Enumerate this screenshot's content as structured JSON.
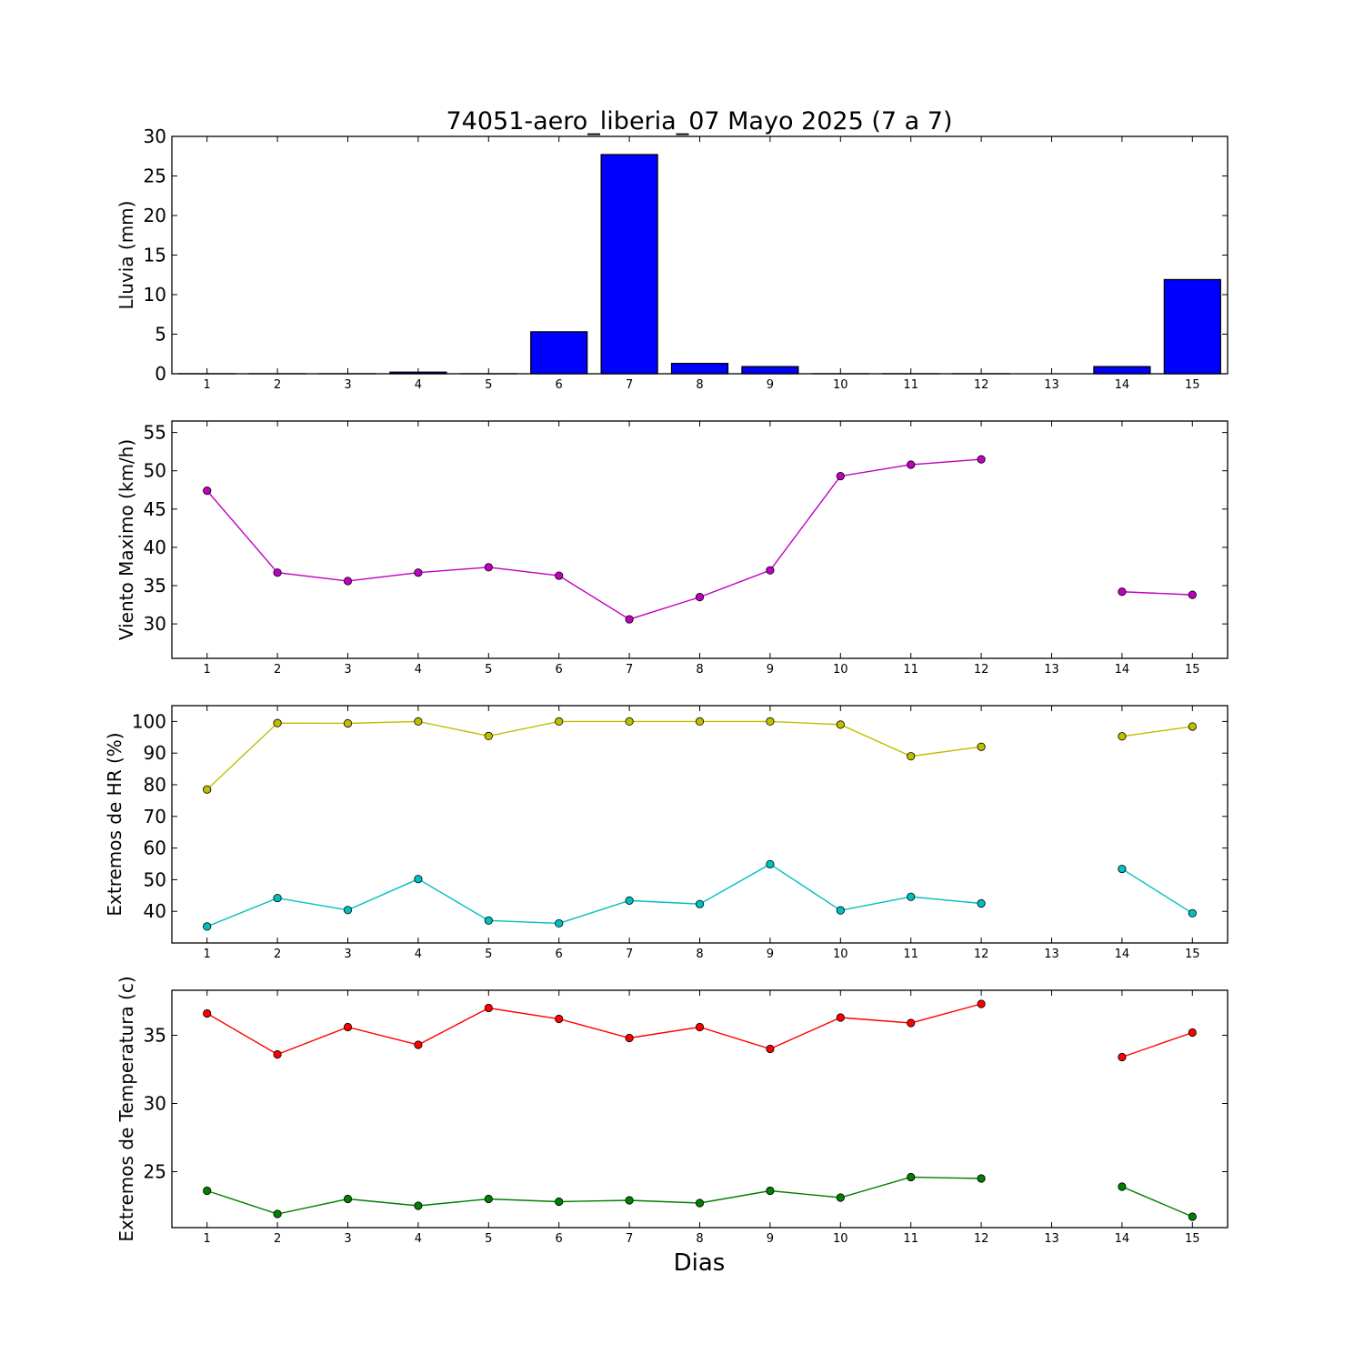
{
  "figure": {
    "title": "74051-aero_liberia_07 Mayo 2025  (7 a 7)",
    "xlabel": "Dias"
  },
  "chart_data": [
    {
      "type": "bar",
      "ylabel": "Lluvia (mm)",
      "ylim": [
        0,
        30
      ],
      "yticks": [
        0,
        5,
        10,
        15,
        20,
        25,
        30
      ],
      "xlim": [
        0.5,
        15.5
      ],
      "xticks": [
        1,
        2,
        3,
        4,
        5,
        6,
        7,
        8,
        9,
        10,
        11,
        12,
        13,
        14,
        15
      ],
      "categories": [
        1,
        2,
        3,
        4,
        5,
        6,
        7,
        8,
        9,
        10,
        11,
        12,
        13,
        14,
        15
      ],
      "values": [
        0,
        0,
        0,
        0.2,
        0,
        5.3,
        27.7,
        1.3,
        0.9,
        0,
        0,
        0,
        null,
        0.9,
        11.9
      ],
      "color": "#0000ff",
      "grid": false
    },
    {
      "type": "line",
      "ylabel": "Viento Maximo (km/h)",
      "ylim": [
        25.5,
        56.5
      ],
      "yticks": [
        30,
        35,
        40,
        45,
        50,
        55
      ],
      "xlim": [
        0.5,
        15.5
      ],
      "xticks": [
        1,
        2,
        3,
        4,
        5,
        6,
        7,
        8,
        9,
        10,
        11,
        12,
        13,
        14,
        15
      ],
      "grid": false,
      "series": [
        {
          "color": "#bf00bf",
          "x": [
            1,
            2,
            3,
            4,
            5,
            6,
            7,
            8,
            9,
            10,
            11,
            12,
            13,
            14,
            15
          ],
          "values": [
            47.4,
            36.7,
            35.6,
            36.7,
            37.4,
            36.3,
            30.6,
            33.5,
            37.0,
            49.3,
            50.8,
            51.5,
            null,
            34.2,
            33.8
          ]
        }
      ]
    },
    {
      "type": "line",
      "ylabel": "Extremos de HR (%)",
      "ylim": [
        30,
        105
      ],
      "yticks": [
        40,
        50,
        60,
        70,
        80,
        90,
        100
      ],
      "xlim": [
        0.5,
        15.5
      ],
      "xticks": [
        1,
        2,
        3,
        4,
        5,
        6,
        7,
        8,
        9,
        10,
        11,
        12,
        13,
        14,
        15
      ],
      "grid": false,
      "series": [
        {
          "color": "#bfbf00",
          "x": [
            1,
            2,
            3,
            4,
            5,
            6,
            7,
            8,
            9,
            10,
            11,
            12,
            13,
            14,
            15
          ],
          "values": [
            78.5,
            99.5,
            99.4,
            100,
            95.4,
            100,
            100,
            100,
            100,
            99,
            89,
            92,
            null,
            95.3,
            98.4
          ]
        },
        {
          "color": "#00bfbf",
          "x": [
            1,
            2,
            3,
            4,
            5,
            6,
            7,
            8,
            9,
            10,
            11,
            12,
            13,
            14,
            15
          ],
          "values": [
            35.2,
            44.2,
            40.4,
            50.2,
            37.1,
            36.2,
            43.4,
            42.3,
            54.9,
            40.3,
            44.6,
            42.5,
            null,
            53.4,
            39.4
          ]
        }
      ]
    },
    {
      "type": "line",
      "ylabel": "Extremos de Temperatura (c)",
      "ylim": [
        20.9,
        38.3
      ],
      "yticks": [
        25,
        30,
        35
      ],
      "xlim": [
        0.5,
        15.5
      ],
      "xticks": [
        1,
        2,
        3,
        4,
        5,
        6,
        7,
        8,
        9,
        10,
        11,
        12,
        13,
        14,
        15
      ],
      "grid": false,
      "series": [
        {
          "color": "#ff0000",
          "x": [
            1,
            2,
            3,
            4,
            5,
            6,
            7,
            8,
            9,
            10,
            11,
            12,
            13,
            14,
            15
          ],
          "values": [
            36.6,
            33.6,
            35.6,
            34.3,
            37.0,
            36.2,
            34.8,
            35.6,
            34.0,
            36.3,
            35.9,
            37.3,
            null,
            33.4,
            35.2
          ]
        },
        {
          "color": "#007f00",
          "x": [
            1,
            2,
            3,
            4,
            5,
            6,
            7,
            8,
            9,
            10,
            11,
            12,
            13,
            14,
            15
          ],
          "values": [
            23.6,
            21.9,
            23.0,
            22.5,
            23.0,
            22.8,
            22.9,
            22.7,
            23.6,
            23.1,
            24.6,
            24.5,
            null,
            23.9,
            21.7
          ]
        }
      ]
    }
  ]
}
